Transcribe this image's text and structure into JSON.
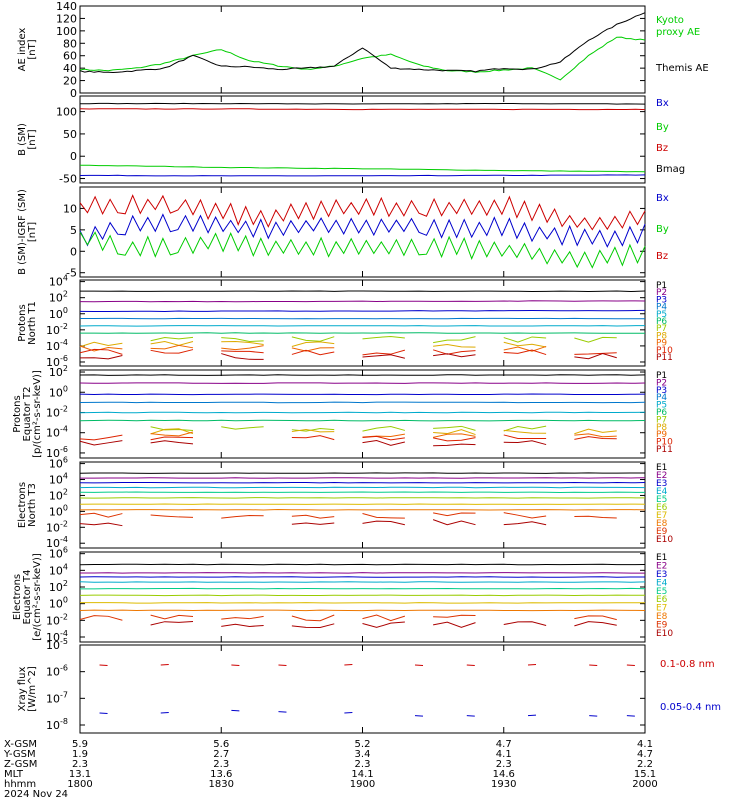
{
  "panels": [
    {
      "id": "ae",
      "ylabel": [
        "AE index",
        "[nT]"
      ],
      "yticks": [
        0,
        20,
        40,
        60,
        80,
        100,
        120,
        140
      ],
      "ylim": [
        0,
        140
      ],
      "legend": [
        {
          "text": "Kyoto",
          "color": "#00cc00"
        },
        {
          "text": "proxy AE",
          "color": "#00cc00"
        },
        {
          "text": "Themis AE",
          "color": "#000000"
        }
      ]
    },
    {
      "id": "bsm",
      "ylabel": [
        "B (SM)",
        "[nT]"
      ],
      "yticks": [
        -50,
        0,
        50,
        100
      ],
      "ylim": [
        -60,
        135
      ],
      "legend": [
        {
          "text": "Bx",
          "color": "#0000cc"
        },
        {
          "text": "By",
          "color": "#00cc00"
        },
        {
          "text": "Bz",
          "color": "#cc0000"
        },
        {
          "text": "Bmag",
          "color": "#000000"
        }
      ]
    },
    {
      "id": "bigrf",
      "ylabel": [
        "B (SM)-IGRF (SM)",
        "[nT]"
      ],
      "yticks": [
        -5,
        0,
        5,
        10
      ],
      "ylim": [
        -6,
        15
      ],
      "legend": [
        {
          "text": "Bx",
          "color": "#0000cc"
        },
        {
          "text": "By",
          "color": "#00cc00"
        },
        {
          "text": "Bz",
          "color": "#cc0000"
        }
      ]
    },
    {
      "id": "pnorth",
      "ylabel": [
        "Protons",
        "North T1"
      ],
      "ytickexp": [
        -6,
        -4,
        -2,
        0,
        2,
        4
      ],
      "ylim": [
        -6.5,
        4.2
      ],
      "legend": [
        {
          "text": "P1",
          "color": "#000000"
        },
        {
          "text": "P2",
          "color": "#880088"
        },
        {
          "text": "P3",
          "color": "#0000cc"
        },
        {
          "text": "P4",
          "color": "#0077cc"
        },
        {
          "text": "P5",
          "color": "#00aacc"
        },
        {
          "text": "P6",
          "color": "#00bb66"
        },
        {
          "text": "P7",
          "color": "#99cc00"
        },
        {
          "text": "P8",
          "color": "#ddaa00"
        },
        {
          "text": "P9",
          "color": "#ee6600"
        },
        {
          "text": "P10",
          "color": "#dd2200"
        },
        {
          "text": "P11",
          "color": "#aa0000"
        }
      ]
    },
    {
      "id": "pequator",
      "ylabel": [
        "Protons",
        "Equator T2",
        "[p/(cm²-s-sr-keV)]"
      ],
      "ytickexp": [
        -6,
        -4,
        -2,
        0,
        2
      ],
      "ylim": [
        -6.5,
        2.2
      ],
      "legend": [
        {
          "text": "P1",
          "color": "#000000"
        },
        {
          "text": "P2",
          "color": "#880088"
        },
        {
          "text": "P3",
          "color": "#0000cc"
        },
        {
          "text": "P4",
          "color": "#0077cc"
        },
        {
          "text": "P5",
          "color": "#00aacc"
        },
        {
          "text": "P6",
          "color": "#00bb66"
        },
        {
          "text": "P7",
          "color": "#99cc00"
        },
        {
          "text": "P8",
          "color": "#ddaa00"
        },
        {
          "text": "P9",
          "color": "#ee6600"
        },
        {
          "text": "P10",
          "color": "#dd2200"
        },
        {
          "text": "P11",
          "color": "#aa0000"
        }
      ]
    },
    {
      "id": "enorth",
      "ylabel": [
        "Electrons",
        "North T3"
      ],
      "ytickexp": [
        -4,
        -2,
        0,
        2,
        4,
        6
      ],
      "ylim": [
        -4.6,
        6.2
      ],
      "legend": [
        {
          "text": "E1",
          "color": "#000000"
        },
        {
          "text": "E2",
          "color": "#880088"
        },
        {
          "text": "E3",
          "color": "#0000cc"
        },
        {
          "text": "E4",
          "color": "#00aacc"
        },
        {
          "text": "E5",
          "color": "#00cc88"
        },
        {
          "text": "E6",
          "color": "#99cc00"
        },
        {
          "text": "E7",
          "color": "#ddbb00"
        },
        {
          "text": "E8",
          "color": "#ee7700"
        },
        {
          "text": "E9",
          "color": "#dd3300"
        },
        {
          "text": "E10",
          "color": "#aa0000"
        }
      ]
    },
    {
      "id": "eequator",
      "ylabel": [
        "Electrons",
        "Equator T4",
        "[e/(cm²-s-sr-keV)]"
      ],
      "ytickexp": [
        -4,
        -2,
        0,
        2,
        4,
        6
      ],
      "ylim": [
        -4.6,
        6.2
      ],
      "legend": [
        {
          "text": "E1",
          "color": "#000000"
        },
        {
          "text": "E2",
          "color": "#880088"
        },
        {
          "text": "E3",
          "color": "#0000cc"
        },
        {
          "text": "E4",
          "color": "#00aacc"
        },
        {
          "text": "E5",
          "color": "#00cc88"
        },
        {
          "text": "E6",
          "color": "#99cc00"
        },
        {
          "text": "E7",
          "color": "#ddbb00"
        },
        {
          "text": "E8",
          "color": "#ee7700"
        },
        {
          "text": "E9",
          "color": "#dd3300"
        },
        {
          "text": "E10",
          "color": "#aa0000"
        }
      ]
    },
    {
      "id": "xray",
      "ylabel": [
        "Xray flux",
        "[W/m^2]"
      ],
      "ytickexp": [
        -8,
        -7,
        -6,
        -5
      ],
      "ylim": [
        -8.3,
        -5
      ],
      "legend": [
        {
          "text": "0.1-0.8 nm",
          "color": "#cc0000"
        },
        {
          "text": "0.05-0.4 nm",
          "color": "#0000cc"
        }
      ]
    }
  ],
  "chart_data": {
    "type": "line",
    "x_range_minutes": [
      0,
      120
    ],
    "series": [
      {
        "panel": "ae",
        "name": "Kyoto proxy AE",
        "color": "#00cc00",
        "x": [
          0,
          6,
          12,
          18,
          24,
          30,
          36,
          42,
          48,
          54,
          60,
          66,
          72,
          78,
          84,
          90,
          96,
          102,
          108,
          114,
          120
        ],
        "values": [
          38,
          36,
          40,
          48,
          60,
          70,
          52,
          44,
          38,
          43,
          56,
          62,
          45,
          36,
          34,
          37,
          40,
          22,
          60,
          90,
          85
        ]
      },
      {
        "panel": "ae",
        "name": "Themis AE",
        "color": "#000000",
        "x": [
          0,
          6,
          12,
          18,
          24,
          30,
          36,
          42,
          48,
          54,
          60,
          66,
          72,
          78,
          84,
          90,
          96,
          102,
          108,
          114,
          120
        ],
        "values": [
          35,
          33,
          36,
          40,
          60,
          43,
          42,
          38,
          40,
          43,
          73,
          40,
          38,
          36,
          35,
          40,
          38,
          50,
          85,
          110,
          130
        ]
      },
      {
        "panel": "bsm",
        "name": "Bx",
        "color": "#0000cc",
        "x": [
          0,
          30,
          60,
          90,
          120
        ],
        "values": [
          -43,
          -44,
          -44,
          -43,
          -42
        ]
      },
      {
        "panel": "bsm",
        "name": "By",
        "color": "#00cc00",
        "x": [
          0,
          30,
          60,
          90,
          120
        ],
        "values": [
          -20,
          -25,
          -28,
          -32,
          -35
        ]
      },
      {
        "panel": "bsm",
        "name": "Bz",
        "color": "#cc0000",
        "x": [
          0,
          30,
          60,
          90,
          120
        ],
        "values": [
          106,
          106,
          105,
          105,
          105
        ]
      },
      {
        "panel": "bsm",
        "name": "Bmag",
        "color": "#000000",
        "x": [
          0,
          30,
          60,
          90,
          120
        ],
        "values": [
          118,
          118,
          117,
          118,
          117
        ]
      },
      {
        "panel": "bigrf",
        "name": "Bx",
        "color": "#0000cc",
        "x": [
          0,
          10,
          20,
          30,
          40,
          50,
          60,
          70,
          80,
          90,
          100,
          110,
          120
        ],
        "values": [
          3,
          6,
          7,
          6,
          5,
          6,
          6,
          6,
          5,
          6,
          4,
          3,
          4
        ]
      },
      {
        "panel": "bigrf",
        "name": "By",
        "color": "#00cc00",
        "x": [
          0,
          10,
          20,
          30,
          40,
          50,
          60,
          70,
          80,
          90,
          100,
          110,
          120
        ],
        "values": [
          3,
          1,
          1,
          2,
          1,
          1,
          1,
          1,
          1,
          0,
          -1,
          -2,
          0
        ]
      },
      {
        "panel": "bigrf",
        "name": "Bz",
        "color": "#cc0000",
        "x": [
          0,
          10,
          20,
          30,
          40,
          50,
          60,
          70,
          80,
          90,
          100,
          110,
          120
        ],
        "values": [
          10,
          11,
          11,
          9,
          8,
          10,
          10,
          10,
          10,
          11,
          8,
          6,
          8
        ]
      },
      {
        "panel": "pnorth",
        "name": "P1",
        "x": [
          0,
          120
        ],
        "values": [
          2.8,
          2.8
        ]
      },
      {
        "panel": "pnorth",
        "name": "P2",
        "x": [
          0,
          120
        ],
        "values": [
          1.5,
          1.6
        ]
      },
      {
        "panel": "pnorth",
        "name": "P3",
        "x": [
          0,
          120
        ],
        "values": [
          0.3,
          0.4
        ]
      },
      {
        "panel": "pnorth",
        "name": "P4",
        "x": [
          0,
          120
        ],
        "values": [
          -0.6,
          -0.6
        ]
      },
      {
        "panel": "pnorth",
        "name": "P5",
        "x": [
          0,
          120
        ],
        "values": [
          -1.5,
          -1.5
        ]
      },
      {
        "panel": "pnorth",
        "name": "P6",
        "x": [
          0,
          120
        ],
        "values": [
          -2.4,
          -2.4
        ]
      },
      {
        "panel": "pnorth",
        "name": "P7",
        "x": [
          0,
          120
        ],
        "values": [
          -3.2,
          -3.2
        ]
      },
      {
        "panel": "pnorth",
        "name": "P8",
        "x": [
          0,
          120
        ],
        "values": [
          -3.8,
          -3.8
        ]
      },
      {
        "panel": "pnorth",
        "name": "P9",
        "x": [
          0,
          120
        ],
        "values": [
          -4.3,
          -4.3
        ]
      },
      {
        "panel": "pnorth",
        "name": "P10",
        "x": [
          0,
          120
        ],
        "values": [
          -4.8,
          -4.8
        ]
      },
      {
        "panel": "pnorth",
        "name": "P11",
        "x": [
          0,
          120
        ],
        "values": [
          -5.3,
          -5.3
        ]
      },
      {
        "panel": "pequator",
        "name": "P1",
        "x": [
          0,
          120
        ],
        "values": [
          1.7,
          1.7
        ]
      },
      {
        "panel": "pequator",
        "name": "P2",
        "x": [
          0,
          120
        ],
        "values": [
          0.9,
          0.9
        ]
      },
      {
        "panel": "pequator",
        "name": "P3",
        "x": [
          0,
          120
        ],
        "values": [
          -0.2,
          -0.2
        ]
      },
      {
        "panel": "pequator",
        "name": "P4",
        "x": [
          0,
          120
        ],
        "values": [
          -1.0,
          -1.0
        ]
      },
      {
        "panel": "pequator",
        "name": "P5",
        "x": [
          0,
          120
        ],
        "values": [
          -2.0,
          -2.0
        ]
      },
      {
        "panel": "pequator",
        "name": "P6",
        "x": [
          0,
          120
        ],
        "values": [
          -2.8,
          -2.8
        ]
      },
      {
        "panel": "pequator",
        "name": "P7",
        "x": [
          0,
          120
        ],
        "values": [
          -3.6,
          -3.6
        ]
      },
      {
        "panel": "pequator",
        "name": "P8",
        "x": [
          0,
          120
        ],
        "values": [
          -3.9,
          -3.9
        ]
      },
      {
        "panel": "pequator",
        "name": "P9",
        "x": [
          0,
          120
        ],
        "values": [
          -4.2,
          -4.2
        ]
      },
      {
        "panel": "pequator",
        "name": "P10",
        "x": [
          0,
          120
        ],
        "values": [
          -4.5,
          -4.5
        ]
      },
      {
        "panel": "pequator",
        "name": "P11",
        "x": [
          0,
          120
        ],
        "values": [
          -5.0,
          -5.0
        ]
      },
      {
        "panel": "enorth",
        "name": "E1",
        "x": [
          0,
          120
        ],
        "values": [
          4.8,
          4.8
        ]
      },
      {
        "panel": "enorth",
        "name": "E2",
        "x": [
          0,
          120
        ],
        "values": [
          4.2,
          4.2
        ]
      },
      {
        "panel": "enorth",
        "name": "E3",
        "x": [
          0,
          120
        ],
        "values": [
          3.6,
          3.6
        ]
      },
      {
        "panel": "enorth",
        "name": "E4",
        "x": [
          0,
          120
        ],
        "values": [
          3.0,
          3.0
        ]
      },
      {
        "panel": "enorth",
        "name": "E5",
        "x": [
          0,
          120
        ],
        "values": [
          2.4,
          2.4
        ]
      },
      {
        "panel": "enorth",
        "name": "E6",
        "x": [
          0,
          120
        ],
        "values": [
          1.7,
          1.7
        ]
      },
      {
        "panel": "enorth",
        "name": "E7",
        "x": [
          0,
          120
        ],
        "values": [
          0.9,
          0.9
        ]
      },
      {
        "panel": "enorth",
        "name": "E8",
        "x": [
          0,
          120
        ],
        "values": [
          0.2,
          0.2
        ]
      },
      {
        "panel": "enorth",
        "name": "E9",
        "x": [
          0,
          120
        ],
        "values": [
          -0.5,
          -0.5
        ]
      },
      {
        "panel": "enorth",
        "name": "E10",
        "x": [
          0,
          120
        ],
        "values": [
          -1.4,
          -1.4
        ]
      },
      {
        "panel": "eequator",
        "name": "E1",
        "x": [
          0,
          120
        ],
        "values": [
          4.7,
          4.7
        ]
      },
      {
        "panel": "eequator",
        "name": "E2",
        "x": [
          0,
          120
        ],
        "values": [
          3.7,
          3.7
        ]
      },
      {
        "panel": "eequator",
        "name": "E3",
        "x": [
          0,
          120
        ],
        "values": [
          3.2,
          3.2
        ]
      },
      {
        "panel": "eequator",
        "name": "E4",
        "x": [
          0,
          120
        ],
        "values": [
          2.6,
          2.6
        ]
      },
      {
        "panel": "eequator",
        "name": "E5",
        "x": [
          0,
          120
        ],
        "values": [
          1.8,
          1.8
        ]
      },
      {
        "panel": "eequator",
        "name": "E6",
        "x": [
          0,
          120
        ],
        "values": [
          1.0,
          1.0
        ]
      },
      {
        "panel": "eequator",
        "name": "E7",
        "x": [
          0,
          120
        ],
        "values": [
          0.1,
          0.1
        ]
      },
      {
        "panel": "eequator",
        "name": "E8",
        "x": [
          0,
          120
        ],
        "values": [
          -0.8,
          -0.8
        ]
      },
      {
        "panel": "eequator",
        "name": "E9",
        "x": [
          0,
          120
        ],
        "values": [
          -1.7,
          -1.7
        ]
      },
      {
        "panel": "eequator",
        "name": "E10",
        "x": [
          0,
          120
        ],
        "values": [
          -2.5,
          -2.5
        ]
      },
      {
        "panel": "xray",
        "name": "0.1-0.8 nm",
        "color": "#cc0000",
        "style": "dashes",
        "x": [
          5,
          18,
          33,
          43,
          57,
          72,
          83,
          96,
          109,
          117
        ],
        "values": [
          -5.75,
          -5.75,
          -5.75,
          -5.75,
          -5.75,
          -5.75,
          -5.75,
          -5.75,
          -5.75,
          -5.75
        ]
      },
      {
        "panel": "xray",
        "name": "0.05-0.4 nm",
        "color": "#0000cc",
        "style": "dashes",
        "x": [
          5,
          18,
          33,
          43,
          57,
          72,
          83,
          96,
          109,
          117
        ],
        "values": [
          -7.55,
          -7.55,
          -7.45,
          -7.5,
          -7.55,
          -7.65,
          -7.65,
          -7.65,
          -7.65,
          -7.65
        ]
      }
    ]
  },
  "xaxis": {
    "rows": [
      {
        "label": "X-GSM",
        "values": [
          "5.9",
          "5.6",
          "5.2",
          "4.7",
          "4.1"
        ]
      },
      {
        "label": "Y-GSM",
        "values": [
          "1.9",
          "2.7",
          "3.4",
          "4.1",
          "4.7"
        ]
      },
      {
        "label": "Z-GSM",
        "values": [
          "2.3",
          "2.3",
          "2.3",
          "2.3",
          "2.2"
        ]
      },
      {
        "label": "MLT",
        "values": [
          "13.1",
          "13.6",
          "14.1",
          "14.6",
          "15.1"
        ]
      },
      {
        "label": "hhmm",
        "values": [
          "1800",
          "1830",
          "1900",
          "1930",
          "2000"
        ]
      }
    ],
    "date": "2024 Nov 24"
  }
}
